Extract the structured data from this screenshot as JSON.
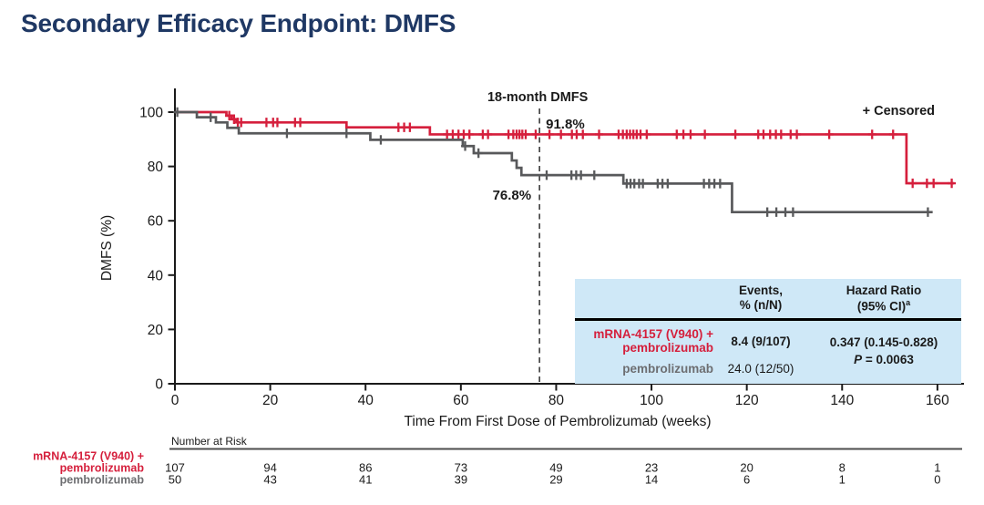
{
  "slide": {
    "title": "Secondary Efficacy Endpoint: DMFS"
  },
  "chart_data": {
    "type": "line",
    "subtype": "kaplan-meier-step",
    "title": "",
    "xlabel": "Time From First Dose of Pembrolizumab (weeks)",
    "ylabel": "DMFS (%)",
    "xlim": [
      0,
      160
    ],
    "ylim": [
      0,
      100
    ],
    "xticks": [
      0,
      20,
      40,
      60,
      80,
      100,
      120,
      140,
      160
    ],
    "yticks": [
      0,
      20,
      40,
      60,
      80,
      100
    ],
    "grid": false,
    "legend_label": "+ Censored",
    "annotations": {
      "timepoint_label": "18-month DMFS",
      "timepoint_week": 76.5,
      "rate_label_mrna": "91.8%",
      "rate_label_pembro": "76.8%"
    },
    "series": [
      {
        "name": "mRNA-4157 (V940) + pembrolizumab",
        "slug": "mrna4157-pembrolizumab",
        "color": "#d51f3c",
        "start_pct": 100,
        "end_week": 163.5,
        "events": [
          [
            10.8,
            98.7
          ],
          [
            11.9,
            97.4
          ],
          [
            12.9,
            96.2
          ],
          [
            36,
            94.4
          ],
          [
            53.5,
            91.8
          ],
          [
            153.5,
            73.8
          ]
        ],
        "censors": [
          [
            11.4,
            98.7
          ],
          [
            12.4,
            97.4
          ],
          [
            13.2,
            96.2
          ],
          [
            13.9,
            96.2
          ],
          [
            19.2,
            96.2
          ],
          [
            20.6,
            96.2
          ],
          [
            21.5,
            96.2
          ],
          [
            25.2,
            96.2
          ],
          [
            26.3,
            96.2
          ],
          [
            46.9,
            94.4
          ],
          [
            48.1,
            94.4
          ],
          [
            49.3,
            94.4
          ],
          [
            57.1,
            91.8
          ],
          [
            58.3,
            91.8
          ],
          [
            59.5,
            91.8
          ],
          [
            60.6,
            91.8
          ],
          [
            61.8,
            91.8
          ],
          [
            64.6,
            91.8
          ],
          [
            65.7,
            91.8
          ],
          [
            70.0,
            91.8
          ],
          [
            71.0,
            91.8
          ],
          [
            71.7,
            91.8
          ],
          [
            72.3,
            91.8
          ],
          [
            72.9,
            91.8
          ],
          [
            73.6,
            91.8
          ],
          [
            75.7,
            91.8
          ],
          [
            78.6,
            91.8
          ],
          [
            81.0,
            91.8
          ],
          [
            83.3,
            91.8
          ],
          [
            84.3,
            91.8
          ],
          [
            85.6,
            91.8
          ],
          [
            89.0,
            91.8
          ],
          [
            93.1,
            91.8
          ],
          [
            94.0,
            91.8
          ],
          [
            94.8,
            91.8
          ],
          [
            95.5,
            91.8
          ],
          [
            96.2,
            91.8
          ],
          [
            96.9,
            91.8
          ],
          [
            97.7,
            91.8
          ],
          [
            99.0,
            91.8
          ],
          [
            105.3,
            91.8
          ],
          [
            106.7,
            91.8
          ],
          [
            108.2,
            91.8
          ],
          [
            111.2,
            91.8
          ],
          [
            117.6,
            91.8
          ],
          [
            122.4,
            91.8
          ],
          [
            123.5,
            91.8
          ],
          [
            124.9,
            91.8
          ],
          [
            126.1,
            91.8
          ],
          [
            127.2,
            91.8
          ],
          [
            129.2,
            91.8
          ],
          [
            130.5,
            91.8
          ],
          [
            137.3,
            91.8
          ],
          [
            146.3,
            91.8
          ],
          [
            150.7,
            91.8
          ],
          [
            154.8,
            73.8
          ],
          [
            157.8,
            73.8
          ],
          [
            159.2,
            73.8
          ],
          [
            163.0,
            73.8
          ]
        ]
      },
      {
        "name": "pembrolizumab",
        "slug": "pembrolizumab",
        "color": "#58595b",
        "start_pct": 100,
        "end_week": 159,
        "events": [
          [
            4.6,
            98.1
          ],
          [
            8.6,
            96.2
          ],
          [
            11.0,
            94.2
          ],
          [
            13.4,
            92.2
          ],
          [
            41,
            89.8
          ],
          [
            60.4,
            87.5
          ],
          [
            62.7,
            84.9
          ],
          [
            70.7,
            82.2
          ],
          [
            71.7,
            79.5
          ],
          [
            72.7,
            76.8
          ],
          [
            94.1,
            73.7
          ],
          [
            116.9,
            63.2
          ]
        ],
        "censors": [
          [
            0.5,
            100
          ],
          [
            7.5,
            98.1
          ],
          [
            23.5,
            92.2
          ],
          [
            36.0,
            92.2
          ],
          [
            43.2,
            89.8
          ],
          [
            60.9,
            87.5
          ],
          [
            63.7,
            84.9
          ],
          [
            78.0,
            76.8
          ],
          [
            83.2,
            76.8
          ],
          [
            84.2,
            76.8
          ],
          [
            85.2,
            76.8
          ],
          [
            88.0,
            76.8
          ],
          [
            94.8,
            73.7
          ],
          [
            95.6,
            73.7
          ],
          [
            96.4,
            73.7
          ],
          [
            97.4,
            73.7
          ],
          [
            98.2,
            73.7
          ],
          [
            101.3,
            73.7
          ],
          [
            102.3,
            73.7
          ],
          [
            103.4,
            73.7
          ],
          [
            111.0,
            73.7
          ],
          [
            112.1,
            73.7
          ],
          [
            113.2,
            73.7
          ],
          [
            114.4,
            73.7
          ],
          [
            124.3,
            63.2
          ],
          [
            126.2,
            63.2
          ],
          [
            128.1,
            63.2
          ],
          [
            129.7,
            63.2
          ],
          [
            158.0,
            63.2
          ]
        ]
      }
    ]
  },
  "results_table": {
    "header": {
      "events_line1": "Events,",
      "events_line2": "% (n/N)",
      "hr_line1": "Hazard Ratio",
      "hr_line2": "(95% CI)",
      "hr_sup": "a"
    },
    "row1": {
      "label_line1": "mRNA-4157 (V940) +",
      "label_line2": "pembrolizumab",
      "events": "8.4 (9/107)"
    },
    "row2": {
      "label": "pembrolizumab",
      "events": "24.0 (12/50)"
    },
    "hazard_ratio": "0.347 (0.145-0.828)",
    "p_label": "P",
    "p_value": " = 0.0063"
  },
  "risk_table": {
    "title": "Number at Risk",
    "rows": [
      {
        "name_lines": [
          "mRNA-4157 (V940) +",
          "pembrolizumab"
        ],
        "color": "#d51f3c",
        "values": [
          "107",
          "94",
          "86",
          "73",
          "49",
          "23",
          "20",
          "8",
          "1"
        ]
      },
      {
        "name_lines": [
          "pembrolizumab"
        ],
        "color": "#6d6e71",
        "values": [
          "50",
          "43",
          "41",
          "39",
          "29",
          "14",
          "6",
          "1",
          "0"
        ]
      }
    ]
  }
}
